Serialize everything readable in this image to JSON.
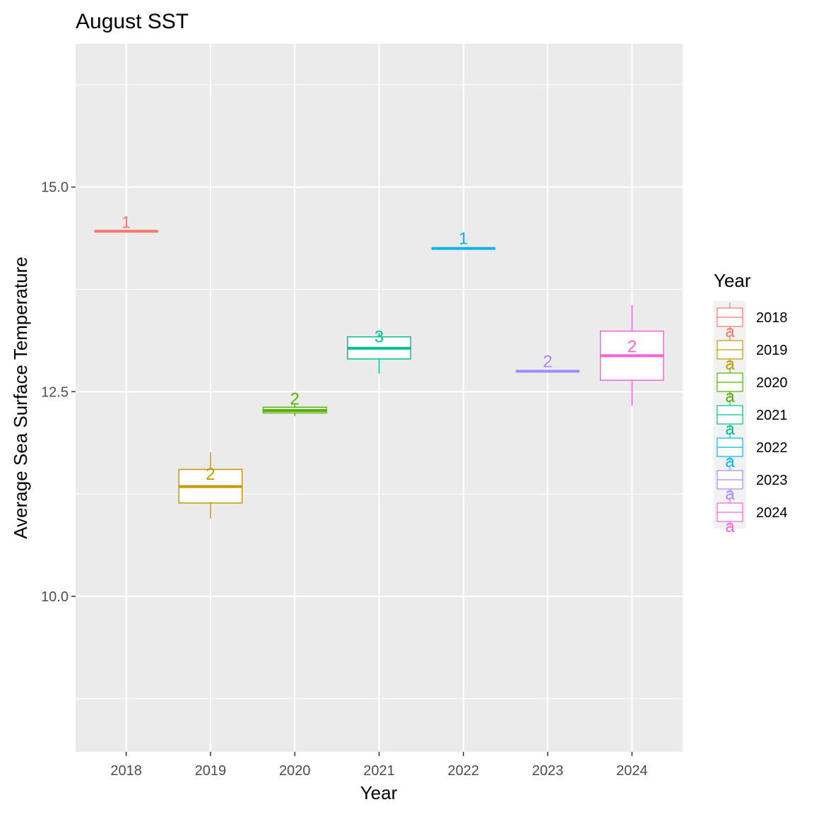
{
  "chart_data": {
    "type": "boxplot",
    "title": "August SST",
    "xlabel": "Year",
    "ylabel": "Average Sea Surface Temperature",
    "ylim": [
      8.1,
      16.75
    ],
    "y_ticks": [
      10.0,
      12.5,
      15.0
    ],
    "y_tick_labels": [
      "10.0",
      "12.5",
      "15.0"
    ],
    "grid": true,
    "legend": {
      "title": "Year",
      "position": "right",
      "key_glyph_text": "a"
    },
    "categories": [
      "2018",
      "2019",
      "2020",
      "2021",
      "2022",
      "2023",
      "2024"
    ],
    "boxes": [
      {
        "year": "2018",
        "color": "#F8766D",
        "min": 14.46,
        "q1": 14.46,
        "median": 14.46,
        "q3": 14.46,
        "max": 14.46,
        "label": "1",
        "label_y": 14.58
      },
      {
        "year": "2019",
        "color": "#C49A00",
        "min": 10.95,
        "q1": 11.14,
        "median": 11.34,
        "q3": 11.55,
        "max": 11.76,
        "label": "2",
        "label_y": 11.5
      },
      {
        "year": "2020",
        "color": "#53B400",
        "min": 12.2,
        "q1": 12.24,
        "median": 12.27,
        "q3": 12.31,
        "max": 12.34,
        "label": "2",
        "label_y": 12.42
      },
      {
        "year": "2021",
        "color": "#00C094",
        "min": 12.72,
        "q1": 12.9,
        "median": 13.03,
        "q3": 13.17,
        "max": 13.22,
        "label": "3",
        "label_y": 13.18
      },
      {
        "year": "2022",
        "color": "#00B6EB",
        "min": 14.25,
        "q1": 14.25,
        "median": 14.25,
        "q3": 14.25,
        "max": 14.25,
        "label": "1",
        "label_y": 14.38
      },
      {
        "year": "2023",
        "color": "#A58AFF",
        "min": 12.75,
        "q1": 12.75,
        "median": 12.75,
        "q3": 12.75,
        "max": 12.75,
        "label": "2",
        "label_y": 12.88
      },
      {
        "year": "2024",
        "color": "#FB61D7",
        "min": 12.33,
        "q1": 12.64,
        "median": 12.94,
        "q3": 13.24,
        "max": 13.56,
        "label": "2",
        "label_y": 13.06
      }
    ]
  }
}
